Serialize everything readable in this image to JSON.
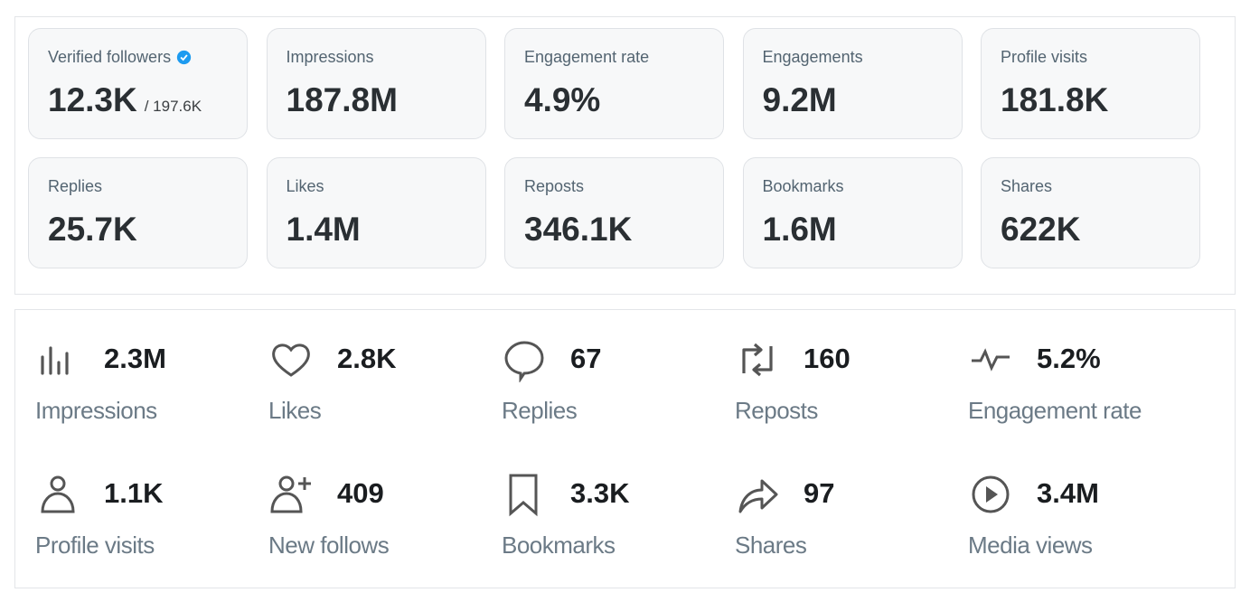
{
  "summary_cards": [
    {
      "label": "Verified followers",
      "value": "12.3K",
      "sub": "/ 197.6K",
      "verified": true
    },
    {
      "label": "Impressions",
      "value": "187.8M"
    },
    {
      "label": "Engagement rate",
      "value": "4.9%"
    },
    {
      "label": "Engagements",
      "value": "9.2M"
    },
    {
      "label": "Profile visits",
      "value": "181.8K"
    },
    {
      "label": "Replies",
      "value": "25.7K"
    },
    {
      "label": "Likes",
      "value": "1.4M"
    },
    {
      "label": "Reposts",
      "value": "346.1K"
    },
    {
      "label": "Bookmarks",
      "value": "1.6M"
    },
    {
      "label": "Shares",
      "value": "622K"
    }
  ],
  "post_metrics": [
    {
      "icon": "bar-chart-icon",
      "value": "2.3M",
      "label": "Impressions"
    },
    {
      "icon": "heart-icon",
      "value": "2.8K",
      "label": "Likes"
    },
    {
      "icon": "speech-bubble-icon",
      "value": "67",
      "label": "Replies"
    },
    {
      "icon": "repost-icon",
      "value": "160",
      "label": "Reposts"
    },
    {
      "icon": "pulse-icon",
      "value": "5.2%",
      "label": "Engagement rate"
    },
    {
      "icon": "person-icon",
      "value": "1.1K",
      "label": "Profile visits"
    },
    {
      "icon": "person-add-icon",
      "value": "409",
      "label": "New follows"
    },
    {
      "icon": "bookmark-icon",
      "value": "3.3K",
      "label": "Bookmarks"
    },
    {
      "icon": "share-icon",
      "value": "97",
      "label": "Shares"
    },
    {
      "icon": "play-circle-icon",
      "value": "3.4M",
      "label": "Media views"
    }
  ],
  "colors": {
    "verified": "#1d9bf0",
    "card_bg": "#f7f8f9"
  }
}
